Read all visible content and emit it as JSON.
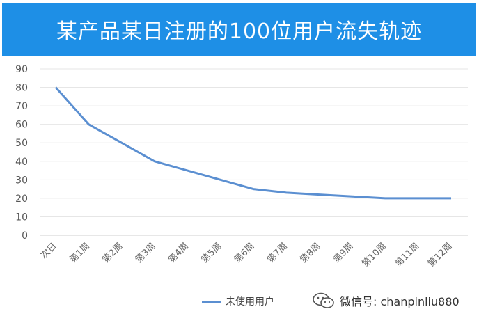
{
  "colors": {
    "title_bg": "#1e8fe6",
    "series": "#5b8fd1",
    "grid": "#e6e6e6"
  },
  "chart_data": {
    "type": "line",
    "title": "某产品某日注册的100位用户流失轨迹",
    "categories": [
      "次日",
      "第1周",
      "第2周",
      "第3周",
      "第4周",
      "第5周",
      "第6周",
      "第7周",
      "第8周",
      "第9周",
      "第10周",
      "第11周",
      "第12周"
    ],
    "series": [
      {
        "name": "未使用用户",
        "values": [
          80,
          60,
          50,
          40,
          35,
          30,
          25,
          23,
          22,
          21,
          20,
          20,
          20
        ]
      }
    ],
    "xlabel": "",
    "ylabel": "",
    "ylim": [
      0,
      90
    ],
    "yticks": [
      0,
      10,
      20,
      30,
      40,
      50,
      60,
      70,
      80,
      90
    ],
    "grid": true,
    "legend_position": "bottom"
  },
  "watermark": {
    "text": "微信号: chanpinliu880",
    "icon": "wechat-icon"
  }
}
